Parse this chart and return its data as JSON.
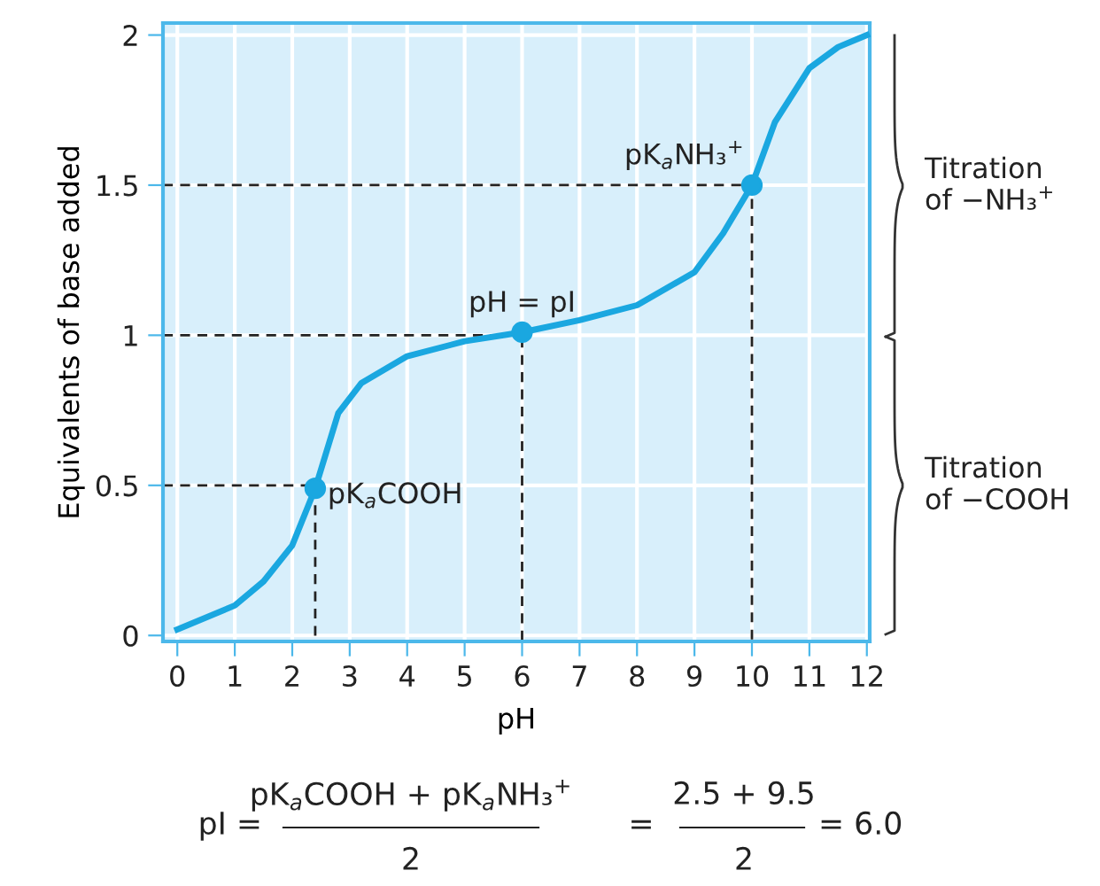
{
  "chart_data": {
    "type": "line",
    "xlabel": "pH",
    "ylabel": "Equivalents of base added",
    "xlim": [
      -0.25,
      12.05
    ],
    "ylim": [
      -0.02,
      2.04
    ],
    "xticks": [
      0,
      1,
      2,
      3,
      4,
      5,
      6,
      7,
      8,
      9,
      10,
      11,
      12
    ],
    "yticks": [
      0,
      0.5,
      1,
      1.5,
      2
    ],
    "grid": true,
    "legend": false,
    "series": [
      {
        "color": "#1aa7e0",
        "x": [
          0,
          1,
          1.5,
          2,
          2.4,
          2.8,
          3.2,
          4,
          5,
          6,
          7,
          8,
          9,
          9.5,
          10,
          10.4,
          11,
          11.5,
          12
        ],
        "values": [
          0.02,
          0.1,
          0.18,
          0.3,
          0.49,
          0.74,
          0.84,
          0.93,
          0.98,
          1.01,
          1.05,
          1.1,
          1.21,
          1.34,
          1.5,
          1.71,
          1.89,
          1.96,
          2.0
        ]
      },
      {
        "type": "scatter",
        "marker": "circle",
        "color": "#1aa7e0",
        "x": [
          2.4,
          6,
          10
        ],
        "values": [
          0.49,
          1.01,
          1.5
        ]
      },
      {
        "type": "line",
        "line_style": "dashed",
        "color": "#222222",
        "x": [
          -0.25,
          2.4,
          2.4
        ],
        "values": [
          0.5,
          0.5,
          -0.02
        ]
      },
      {
        "type": "line",
        "line_style": "dashed",
        "color": "#222222",
        "x": [
          -0.25,
          6,
          6
        ],
        "values": [
          1,
          1,
          -0.02
        ]
      },
      {
        "type": "line",
        "line_style": "dashed",
        "color": "#222222",
        "x": [
          -0.25,
          10,
          10
        ],
        "values": [
          1.5,
          1.5,
          -0.02
        ]
      }
    ],
    "annotations": [
      {
        "text": "pK$_{a}$COOH",
        "x": 2.4,
        "y": 0.49
      },
      {
        "text": "pH = pI",
        "x": 6,
        "y": 1.01
      },
      {
        "text": "pK$_{a}$NH₃$^{+}$",
        "x": 10,
        "y": 1.5
      },
      "Titration\nof −NH₃$^{+}$",
      "Titration\nof −COOH",
      "pI =",
      "pK$_{a}$COOH + pK$_{a}$NH₃$^{+}$",
      "2",
      "=",
      "2.5 + 9.5",
      "2",
      "= 6.0"
    ]
  }
}
